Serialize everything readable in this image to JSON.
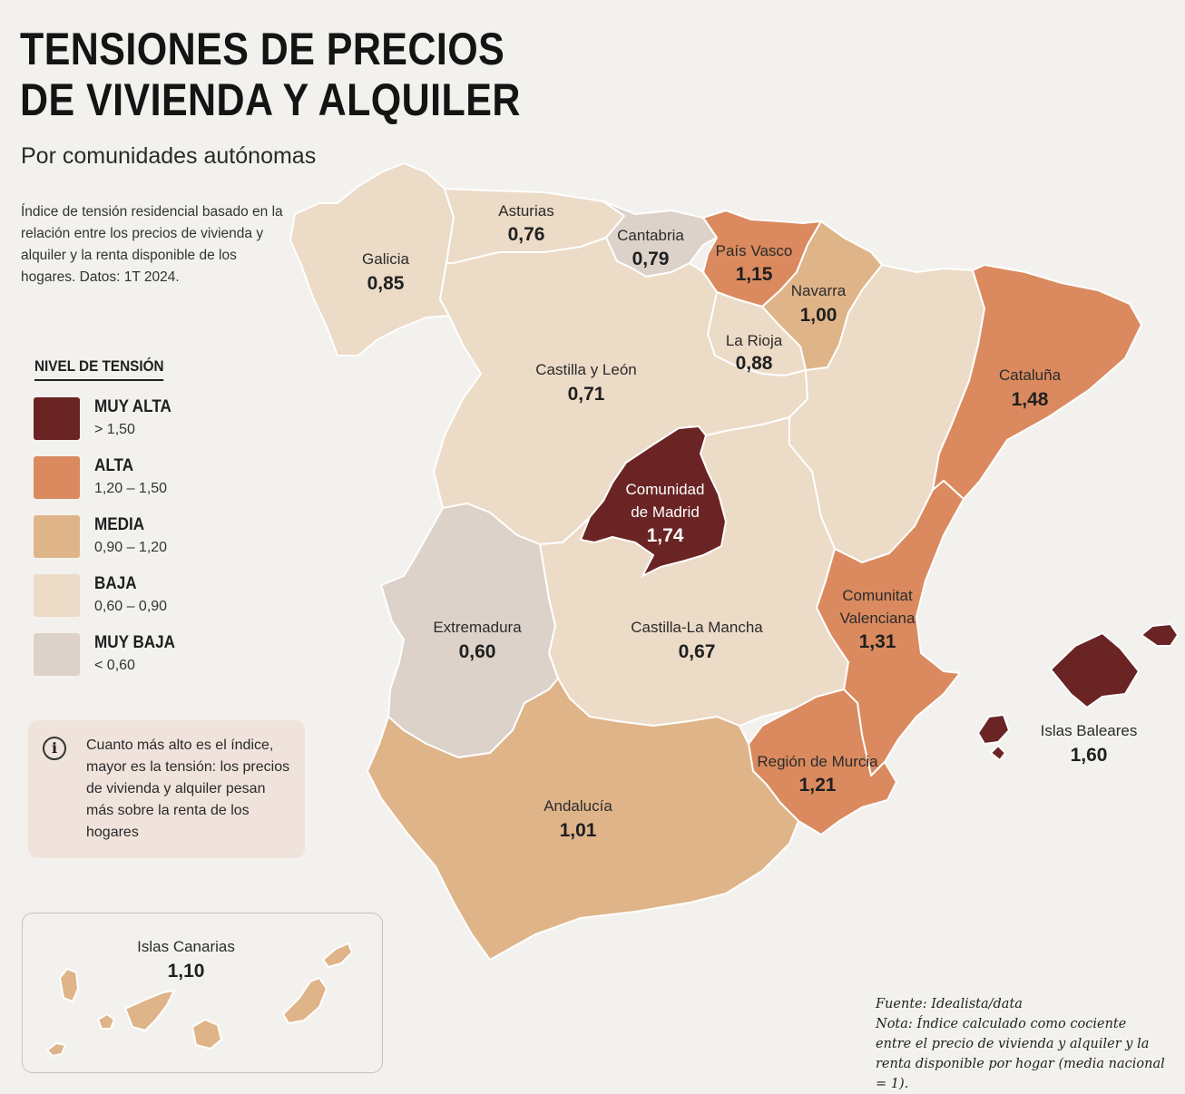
{
  "header": {
    "title_line1": "TENSIONES DE PRECIOS",
    "title_line2": "DE VIVIENDA Y ALQUILER",
    "subtitle": "Por comunidades autónomas",
    "description": "Índice de tensión residencial basado en la relación entre los precios de vivienda y alquiler y la renta disponible de los hogares. Datos: 1T 2024."
  },
  "legend": {
    "title": "NIVEL DE TENSIÓN",
    "items": [
      {
        "label": "MUY ALTA",
        "range": "> 1,50",
        "color": "#6b2424"
      },
      {
        "label": "ALTA",
        "range": "1,20 – 1,50",
        "color": "#da8a5e"
      },
      {
        "label": "MEDIA",
        "range": "0,90 – 1,20",
        "color": "#dfb489"
      },
      {
        "label": "BAJA",
        "range": "0,60 – 0,90",
        "color": "#ecdbc7"
      },
      {
        "label": "MUY BAJA",
        "range": "< 0,60",
        "color": "#dcd2c9"
      }
    ]
  },
  "info": {
    "icon": "info-icon",
    "text": "Cuanto más alto es el índice, mayor es la tensión: los precios de vivienda y alquiler pesan más sobre la renta de los hogares"
  },
  "regions": {
    "galicia": {
      "name": "Galicia",
      "value": "0,85"
    },
    "asturias": {
      "name": "Asturias",
      "value": "0,76"
    },
    "cantabria": {
      "name": "Cantabria",
      "value": "0,79"
    },
    "pais_vasco": {
      "name": "País Vasco",
      "value": "1,15"
    },
    "navarra": {
      "name": "Navarra",
      "value": "1,00"
    },
    "la_rioja": {
      "name": "La Rioja",
      "value": "0,88"
    },
    "castilla_leon": {
      "name": "Castilla y León",
      "value": "0,71"
    },
    "cataluna": {
      "name": "Cataluña",
      "value": "1,48"
    },
    "madrid_1": "Comunidad",
    "madrid_2": "de Madrid",
    "madrid_value": "1,74",
    "extremadura": {
      "name": "Extremadura",
      "value": "0,60"
    },
    "castilla_mancha": {
      "name": "Castilla-La Mancha",
      "value": "0,67"
    },
    "valenciana_1": "Comunitat",
    "valenciana_2": "Valenciana",
    "valenciana_value": "1,31",
    "murcia": {
      "name": "Región de Murcia",
      "value": "1,21"
    },
    "andalucia": {
      "name": "Andalucía",
      "value": "1,01"
    },
    "baleares": {
      "name": "Islas Baleares",
      "value": "1,60"
    },
    "canarias": {
      "name": "Islas Canarias",
      "value": "1,10"
    }
  },
  "footer": {
    "source": "Fuente: Idealista/data",
    "note": "Nota: Índice calculado como cociente entre el precio de vivienda y alquiler y la renta disponible por hogar (media nacional = 1)."
  }
}
